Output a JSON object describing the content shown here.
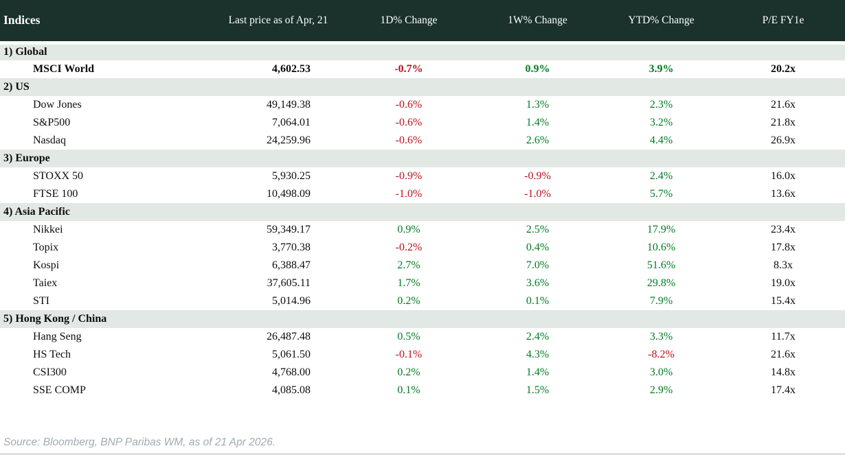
{
  "chart_data": {
    "type": "table",
    "title": "Indices",
    "columns": [
      "Indices",
      "Last price as of Apr, 21",
      "1D% Change",
      "1W% Change",
      "YTD% Change",
      "P/E FY1e"
    ],
    "sections": [
      {
        "label": "1) Global",
        "rows": [
          {
            "name": "MSCI World",
            "price": "4,602.53",
            "d1": "-0.7%",
            "w1": "0.9%",
            "ytd": "3.9%",
            "pe": "20.2x",
            "bold": true
          }
        ]
      },
      {
        "label": "2) US",
        "rows": [
          {
            "name": "Dow Jones",
            "price": "49,149.38",
            "d1": "-0.6%",
            "w1": "1.3%",
            "ytd": "2.3%",
            "pe": "21.6x"
          },
          {
            "name": "S&P500",
            "price": "7,064.01",
            "d1": "-0.6%",
            "w1": "1.4%",
            "ytd": "3.2%",
            "pe": "21.8x"
          },
          {
            "name": "Nasdaq",
            "price": "24,259.96",
            "d1": "-0.6%",
            "w1": "2.6%",
            "ytd": "4.4%",
            "pe": "26.9x"
          }
        ]
      },
      {
        "label": "3) Europe",
        "rows": [
          {
            "name": "STOXX 50",
            "price": "5,930.25",
            "d1": "-0.9%",
            "w1": "-0.9%",
            "ytd": "2.4%",
            "pe": "16.0x"
          },
          {
            "name": "FTSE 100",
            "price": "10,498.09",
            "d1": "-1.0%",
            "w1": "-1.0%",
            "ytd": "5.7%",
            "pe": "13.6x"
          }
        ]
      },
      {
        "label": "4) Asia Pacific",
        "rows": [
          {
            "name": "Nikkei",
            "price": "59,349.17",
            "d1": "0.9%",
            "w1": "2.5%",
            "ytd": "17.9%",
            "pe": "23.4x"
          },
          {
            "name": "Topix",
            "price": "3,770.38",
            "d1": "-0.2%",
            "w1": "0.4%",
            "ytd": "10.6%",
            "pe": "17.8x"
          },
          {
            "name": "Kospi",
            "price": "6,388.47",
            "d1": "2.7%",
            "w1": "7.0%",
            "ytd": "51.6%",
            "pe": "8.3x"
          },
          {
            "name": "Taiex",
            "price": "37,605.11",
            "d1": "1.7%",
            "w1": "3.6%",
            "ytd": "29.8%",
            "pe": "19.0x"
          },
          {
            "name": "STI",
            "price": "5,014.96",
            "d1": "0.2%",
            "w1": "0.1%",
            "ytd": "7.9%",
            "pe": "15.4x"
          }
        ]
      },
      {
        "label": "5) Hong Kong / China",
        "rows": [
          {
            "name": "Hang Seng",
            "price": "26,487.48",
            "d1": "0.5%",
            "w1": "2.4%",
            "ytd": "3.3%",
            "pe": "11.7x"
          },
          {
            "name": "HS Tech",
            "price": "5,061.50",
            "d1": "-0.1%",
            "w1": "4.3%",
            "ytd": "-8.2%",
            "pe": "21.6x"
          },
          {
            "name": "CSI300",
            "price": "4,768.00",
            "d1": "0.2%",
            "w1": "1.4%",
            "ytd": "3.0%",
            "pe": "14.8x"
          },
          {
            "name": "SSE COMP",
            "price": "4,085.08",
            "d1": "0.1%",
            "w1": "1.5%",
            "ytd": "2.9%",
            "pe": "17.4x"
          }
        ]
      }
    ]
  },
  "footer": {
    "source_text": "Source: Bloomberg, BNP Paribas WM, as of 21 Apr 2026."
  },
  "colors": {
    "header_bg": "#1a312c",
    "band_bg": "#e2e8e3",
    "positive": "#007b22",
    "negative": "#b9101a",
    "source_text": "#9fabb4"
  }
}
